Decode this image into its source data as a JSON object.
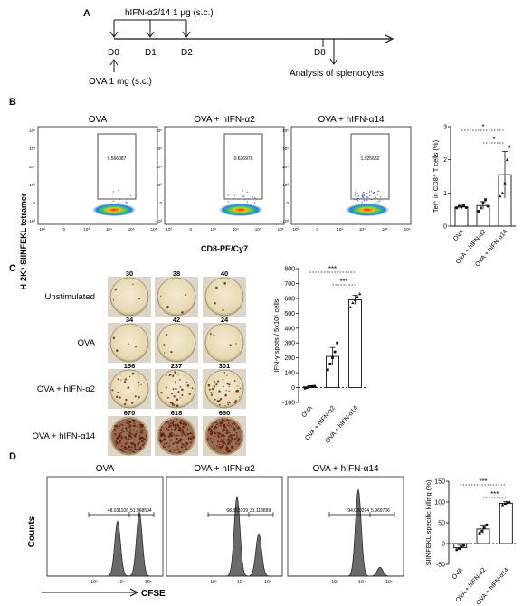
{
  "panelA": {
    "letter": "A",
    "treatment": "hIFN-α2/14  1 µg (s.c.)",
    "days": [
      "D0",
      "D1",
      "D2",
      "D8"
    ],
    "ova": "OVA 1 mg (s.c.)",
    "analysis": "Analysis of splenocytes"
  },
  "panelB": {
    "letter": "B",
    "ylabel": "H-2Kᵇ-SIINFEKL tetramer",
    "xlabel": "CD8-PE/Cy7",
    "flow": [
      {
        "title": "OVA",
        "gate_value": "0.566087"
      },
      {
        "title": "OVA + hIFN-α2",
        "gate_value": "0.626978"
      },
      {
        "title": "OVA + hIFN-α14",
        "gate_value": "1.925682"
      }
    ],
    "yticks": [
      "10⁶",
      "10⁵",
      "10⁴",
      "10³",
      "0",
      "-10³"
    ],
    "xticks": [
      "-10³",
      "0",
      "10³",
      "10⁴",
      "10⁵",
      "10⁶"
    ]
  },
  "panelC": {
    "letter": "C",
    "rows": [
      {
        "label": "Unstimulated",
        "counts": [
          "30",
          "38",
          "40"
        ],
        "density": [
          0.02,
          0.02,
          0.02
        ]
      },
      {
        "label": "OVA",
        "counts": [
          "34",
          "42",
          "24"
        ],
        "density": [
          0.02,
          0.02,
          0.02
        ]
      },
      {
        "label": "OVA + hIFN-α2",
        "counts": [
          "156",
          "237",
          "301"
        ],
        "density": [
          0.12,
          0.2,
          0.26
        ]
      },
      {
        "label": "OVA + hIFN-α14",
        "counts": [
          "670",
          "618",
          "650"
        ],
        "density": [
          0.85,
          0.8,
          0.83
        ]
      }
    ]
  },
  "panelD": {
    "letter": "D",
    "ylabel": "Counts",
    "xlabel": "CFSE",
    "histos": [
      {
        "title": "OVA",
        "left_value": "48.031106",
        "right_value": "51.968594",
        "peak_left": 0.62,
        "peak_right": 0.72
      },
      {
        "title": "OVA + hIFN-α2",
        "left_value": "68.863109",
        "right_value": "31.113889",
        "peak_left": 0.9,
        "peak_right": 0.48
      },
      {
        "title": "OVA + hIFN-α14",
        "left_value": "94.030294",
        "right_value": "5.969706",
        "peak_left": 0.98,
        "peak_right": 0.1
      }
    ],
    "xticks": [
      "10³",
      "10⁴",
      "10⁵"
    ]
  },
  "chart_data": [
    {
      "type": "bar",
      "panel": "B",
      "ylabel": "Tet⁺ in CD8⁺ T cells (%)",
      "categories": [
        "OVA",
        "OVA + hIFN-α2",
        "OVA + hIFN-α14"
      ],
      "values": [
        0.58,
        0.62,
        1.55
      ],
      "errors": [
        0.05,
        0.12,
        0.7
      ],
      "points": [
        [
          0.55,
          0.6,
          0.57,
          0.62,
          0.56
        ],
        [
          0.45,
          0.55,
          0.7,
          0.8,
          0.6
        ],
        [
          0.9,
          1.0,
          1.3,
          2.0,
          2.4
        ]
      ],
      "ylim": [
        0,
        3
      ],
      "yticks": [
        "0",
        "1",
        "2",
        "3"
      ],
      "significance": [
        "*",
        "*"
      ]
    },
    {
      "type": "bar",
      "panel": "C",
      "ylabel": "IFN-γ spots / 5x10⁵ cells",
      "categories": [
        "OVA",
        "OVA + hIFN-α2",
        "OVA + hIFN-α14"
      ],
      "values": [
        5,
        210,
        590
      ],
      "errors": [
        8,
        60,
        30
      ],
      "points": [
        [
          -5,
          0,
          5,
          8,
          10
        ],
        [
          120,
          160,
          200,
          240,
          300
        ],
        [
          540,
          570,
          590,
          610,
          630
        ]
      ],
      "ylim": [
        -100,
        800
      ],
      "yticks": [
        "-100",
        "0",
        "100",
        "200",
        "300",
        "400",
        "500",
        "600",
        "700",
        "800"
      ],
      "significance": [
        "***",
        "***"
      ]
    },
    {
      "type": "bar",
      "panel": "D",
      "ylabel": "SIINFEKL specific killing (%)",
      "categories": [
        "OVA",
        "OVA + hIFN-α2",
        "OVA + hIFN-α14"
      ],
      "values": [
        -10,
        35,
        97
      ],
      "errors": [
        6,
        10,
        4
      ],
      "points": [
        [
          -15,
          -12,
          -8,
          -5
        ],
        [
          25,
          30,
          38,
          45
        ],
        [
          93,
          96,
          98,
          100
        ]
      ],
      "ylim": [
        -50,
        150
      ],
      "yticks": [
        "-50",
        "0",
        "50",
        "100",
        "150"
      ],
      "significance": [
        "***",
        "***"
      ]
    }
  ]
}
